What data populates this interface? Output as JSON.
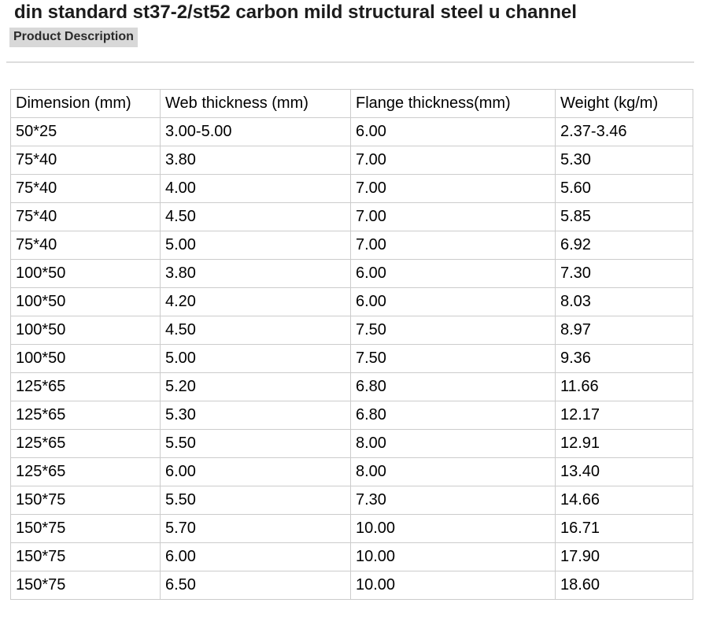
{
  "page": {
    "title": "din standard st37-2/st52 carbon mild structural steel u channel",
    "section_label": "Product Description"
  },
  "table": {
    "columns": [
      "Dimension (mm)",
      "Web thickness (mm)",
      "Flange thickness(mm)",
      "Weight (kg/m)"
    ],
    "rows": [
      [
        "50*25",
        "3.00-5.00",
        "6.00",
        "2.37-3.46"
      ],
      [
        "75*40",
        "3.80",
        "7.00",
        "5.30"
      ],
      [
        "75*40",
        "4.00",
        "7.00",
        "5.60"
      ],
      [
        "75*40",
        "4.50",
        "7.00",
        "5.85"
      ],
      [
        "75*40",
        "5.00",
        "7.00",
        "6.92"
      ],
      [
        "100*50",
        "3.80",
        "6.00",
        "7.30"
      ],
      [
        "100*50",
        "4.20",
        "6.00",
        "8.03"
      ],
      [
        "100*50",
        "4.50",
        "7.50",
        "8.97"
      ],
      [
        "100*50",
        "5.00",
        "7.50",
        "9.36"
      ],
      [
        "125*65",
        "5.20",
        "6.80",
        "11.66"
      ],
      [
        "125*65",
        "5.30",
        "6.80",
        "12.17"
      ],
      [
        "125*65",
        "5.50",
        "8.00",
        "12.91"
      ],
      [
        "125*65",
        "6.00",
        "8.00",
        "13.40"
      ],
      [
        "150*75",
        "5.50",
        "7.30",
        "14.66"
      ],
      [
        "150*75",
        "5.70",
        "10.00",
        "16.71"
      ],
      [
        "150*75",
        "6.00",
        "10.00",
        "17.90"
      ],
      [
        "150*75",
        "6.50",
        "10.00",
        "18.60"
      ]
    ]
  },
  "colors": {
    "title_text": "#1c1c1c",
    "section_label_bg": "#d8d8d8",
    "section_label_text": "#2b2b2b",
    "table_border": "#cccccc",
    "table_text": "#000000",
    "divider": "#dddddd",
    "page_bg": "#ffffff"
  }
}
